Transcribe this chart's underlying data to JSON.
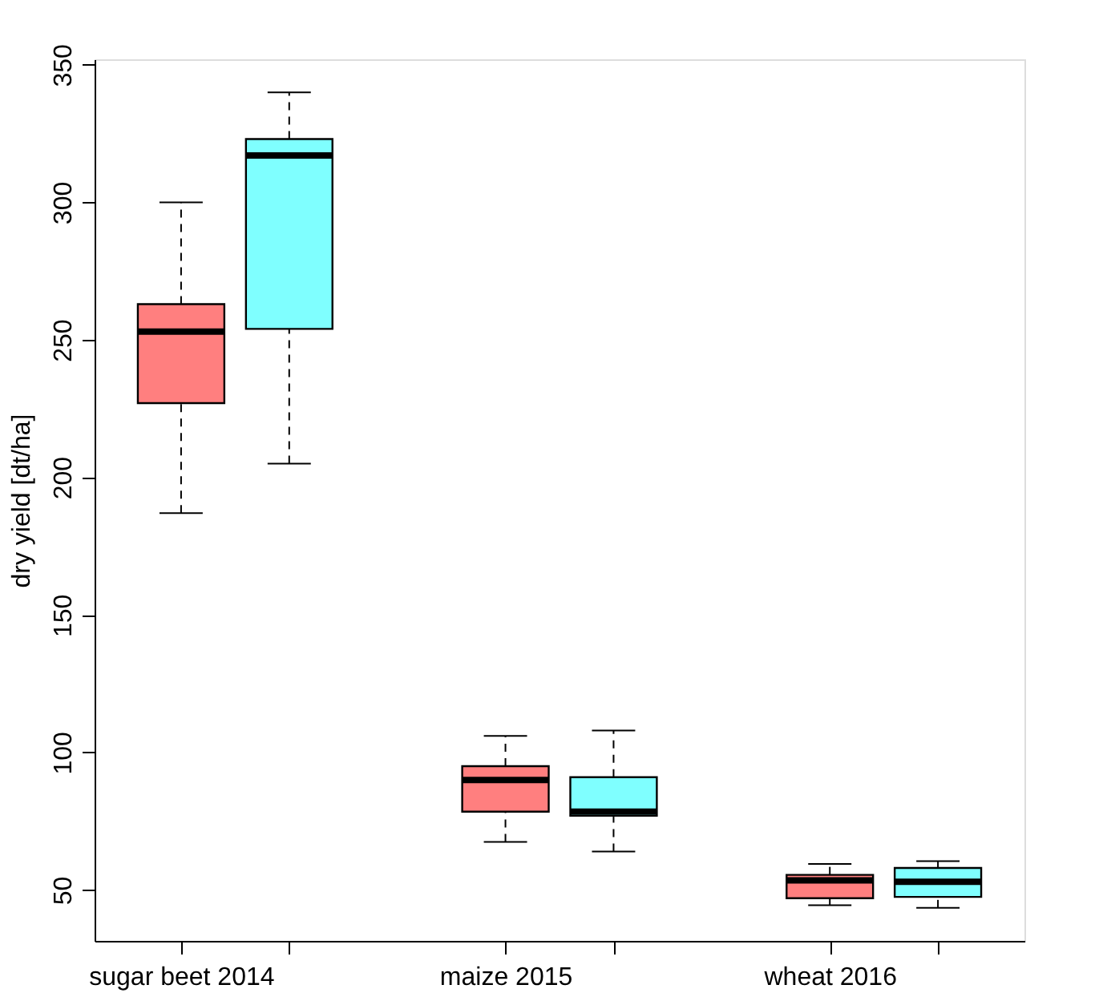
{
  "chart_data": {
    "type": "box",
    "ylabel": "dry yield [dt/ha]",
    "categories": [
      "sugar beet 2014",
      null,
      null,
      "maize 2015",
      null,
      null,
      "wheat 2016",
      null
    ],
    "ylim": [
      31.5,
      352
    ],
    "yticks": [
      50,
      100,
      150,
      200,
      250,
      300,
      350
    ],
    "colors": [
      "#ff7f7f",
      "#7fffff",
      null,
      "#ff7f7f",
      "#7fffff",
      null,
      "#ff7f7f",
      "#7fffff"
    ],
    "boxes": [
      {
        "low": 187,
        "q1": 227,
        "median": 253,
        "q3": 263,
        "high": 300
      },
      {
        "low": 205,
        "q1": 254,
        "median": 317,
        "q3": 323,
        "high": 340
      },
      null,
      {
        "low": 67.5,
        "q1": 78.5,
        "median": 90,
        "q3": 95,
        "high": 106
      },
      {
        "low": 64,
        "q1": 77,
        "median": 78.5,
        "q3": 91,
        "high": 108
      },
      null,
      {
        "low": 44.5,
        "q1": 47,
        "median": 53.5,
        "q3": 55.5,
        "high": 59.5
      },
      {
        "low": 43.5,
        "q1": 47.5,
        "median": 53,
        "q3": 58,
        "high": 60.5
      }
    ],
    "grid": false
  }
}
